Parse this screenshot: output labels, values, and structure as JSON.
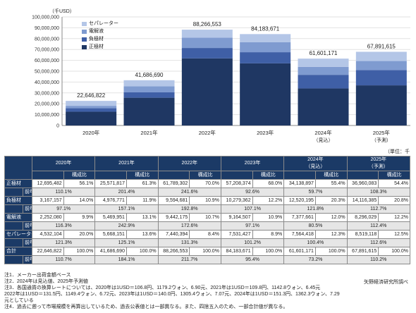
{
  "chart_data": {
    "type": "bar",
    "stacked": true,
    "unit_label": "（千USD）",
    "categories": [
      "2020年",
      "2021年",
      "2022年",
      "2023年",
      "2024年",
      "2025年"
    ],
    "category_sublabels": [
      "",
      "",
      "",
      "",
      "（見込）",
      "（予測）"
    ],
    "totals": [
      "22,646,822",
      "41,686,690",
      "88,266,553",
      "84,183,671",
      "61,601,171",
      "67,891,615"
    ],
    "ylim": [
      0,
      100000000
    ],
    "yticks": [
      "0",
      "10,000,000",
      "20,000,000",
      "30,000,000",
      "40,000,000",
      "50,000,000",
      "60,000,000",
      "70,000,000",
      "80,000,000",
      "90,000,000",
      "100,000,000"
    ],
    "grid": true,
    "legend_position": "top-left",
    "series": [
      {
        "name": "正極材",
        "color": "#1f3763",
        "values": [
          12695482,
          25571817,
          61789302,
          57208374,
          34138897,
          36960083
        ]
      },
      {
        "name": "負極材",
        "color": "#3f5fa6",
        "values": [
          3167157,
          4976771,
          9594681,
          10279362,
          12520195,
          14116385
        ]
      },
      {
        "name": "電解液",
        "color": "#7f9bd0",
        "values": [
          2252080,
          5469951,
          9442175,
          9164507,
          7377661,
          8296029
        ]
      },
      {
        "name": "セパレーター",
        "color": "#b4c6e7",
        "values": [
          4532104,
          5668151,
          7440394,
          7531427,
          7564418,
          8519118
        ]
      }
    ]
  },
  "unit_note": "（単位：千USD）",
  "table": {
    "years": [
      "2020年",
      "2021年",
      "2022年",
      "2023年",
      "2024年",
      "2025年"
    ],
    "year_sub": [
      "",
      "",
      "",
      "",
      "（見込）",
      "（予測）"
    ],
    "ratio_label": "構成比",
    "yoy_label": "前年比",
    "rows": [
      {
        "label": "正極材",
        "values": [
          "12,695,482",
          "25,571,817",
          "61,789,302",
          "57,208,374",
          "34,138,897",
          "36,960,083"
        ],
        "ratios": [
          "56.1%",
          "61.3%",
          "70.0%",
          "68.0%",
          "55.4%",
          "54.4%"
        ],
        "yoy": [
          "110.1%",
          "201.4%",
          "241.6%",
          "92.6%",
          "59.7%",
          "108.3%"
        ]
      },
      {
        "label": "負極材",
        "values": [
          "3,167,157",
          "4,976,771",
          "9,594,681",
          "10,279,362",
          "12,520,195",
          "14,116,385"
        ],
        "ratios": [
          "14.0%",
          "11.9%",
          "10.9%",
          "12.2%",
          "20.3%",
          "20.8%"
        ],
        "yoy": [
          "97.1%",
          "157.1%",
          "192.8%",
          "107.1%",
          "121.8%",
          "112.7%"
        ]
      },
      {
        "label": "電解液",
        "values": [
          "2,252,080",
          "5,469,951",
          "9,442,175",
          "9,164,507",
          "7,377,661",
          "8,296,029"
        ],
        "ratios": [
          "9.9%",
          "13.1%",
          "10.7%",
          "10.9%",
          "12.0%",
          "12.2%"
        ],
        "yoy": [
          "116.3%",
          "242.9%",
          "172.6%",
          "97.1%",
          "80.5%",
          "112.4%"
        ]
      },
      {
        "label": "セパレーター",
        "values": [
          "4,532,104",
          "5,668,151",
          "7,440,394",
          "7,531,427",
          "7,564,418",
          "8,519,118"
        ],
        "ratios": [
          "20.0%",
          "13.6%",
          "8.4%",
          "8.9%",
          "12.3%",
          "12.5%"
        ],
        "yoy": [
          "121.3%",
          "125.1%",
          "131.3%",
          "101.2%",
          "100.4%",
          "112.6%"
        ]
      },
      {
        "label": "合計",
        "values": [
          "22,646,822",
          "41,686,690",
          "88,266,553",
          "84,183,671",
          "61,601,171",
          "67,891,615"
        ],
        "ratios": [
          "100.0%",
          "100.0%",
          "100.0%",
          "100.0%",
          "100.0%",
          "100.0%"
        ],
        "yoy": [
          "110.7%",
          "184.1%",
          "211.7%",
          "95.4%",
          "73.2%",
          "110.2%"
        ]
      }
    ]
  },
  "notes": [
    "注1．メーカー出荷金額ベース",
    "注2．2024年は見込値、2025年予測値",
    "注3．各国通貨の換算レートについては、2020年は1USD＝106.8円、1179.2ウォン、6.90元、2021年は1USD＝109.8円、1142.8ウォン、6.45元",
    "2022年は1USD＝131.5円、1149.4ウォン、6.72元、2023年は1USD＝140.0円、1305.4ウォン、7.07元、2024年は1USD＝151.3円、1362.3ウォン、7.29元としている",
    "注4．過去に遡って市場規模を再算出しているため、過去公表値とは一部異なる。また、四捨五入のため、一部合計値が異なる。"
  ],
  "source": "矢野経済研究所調べ"
}
